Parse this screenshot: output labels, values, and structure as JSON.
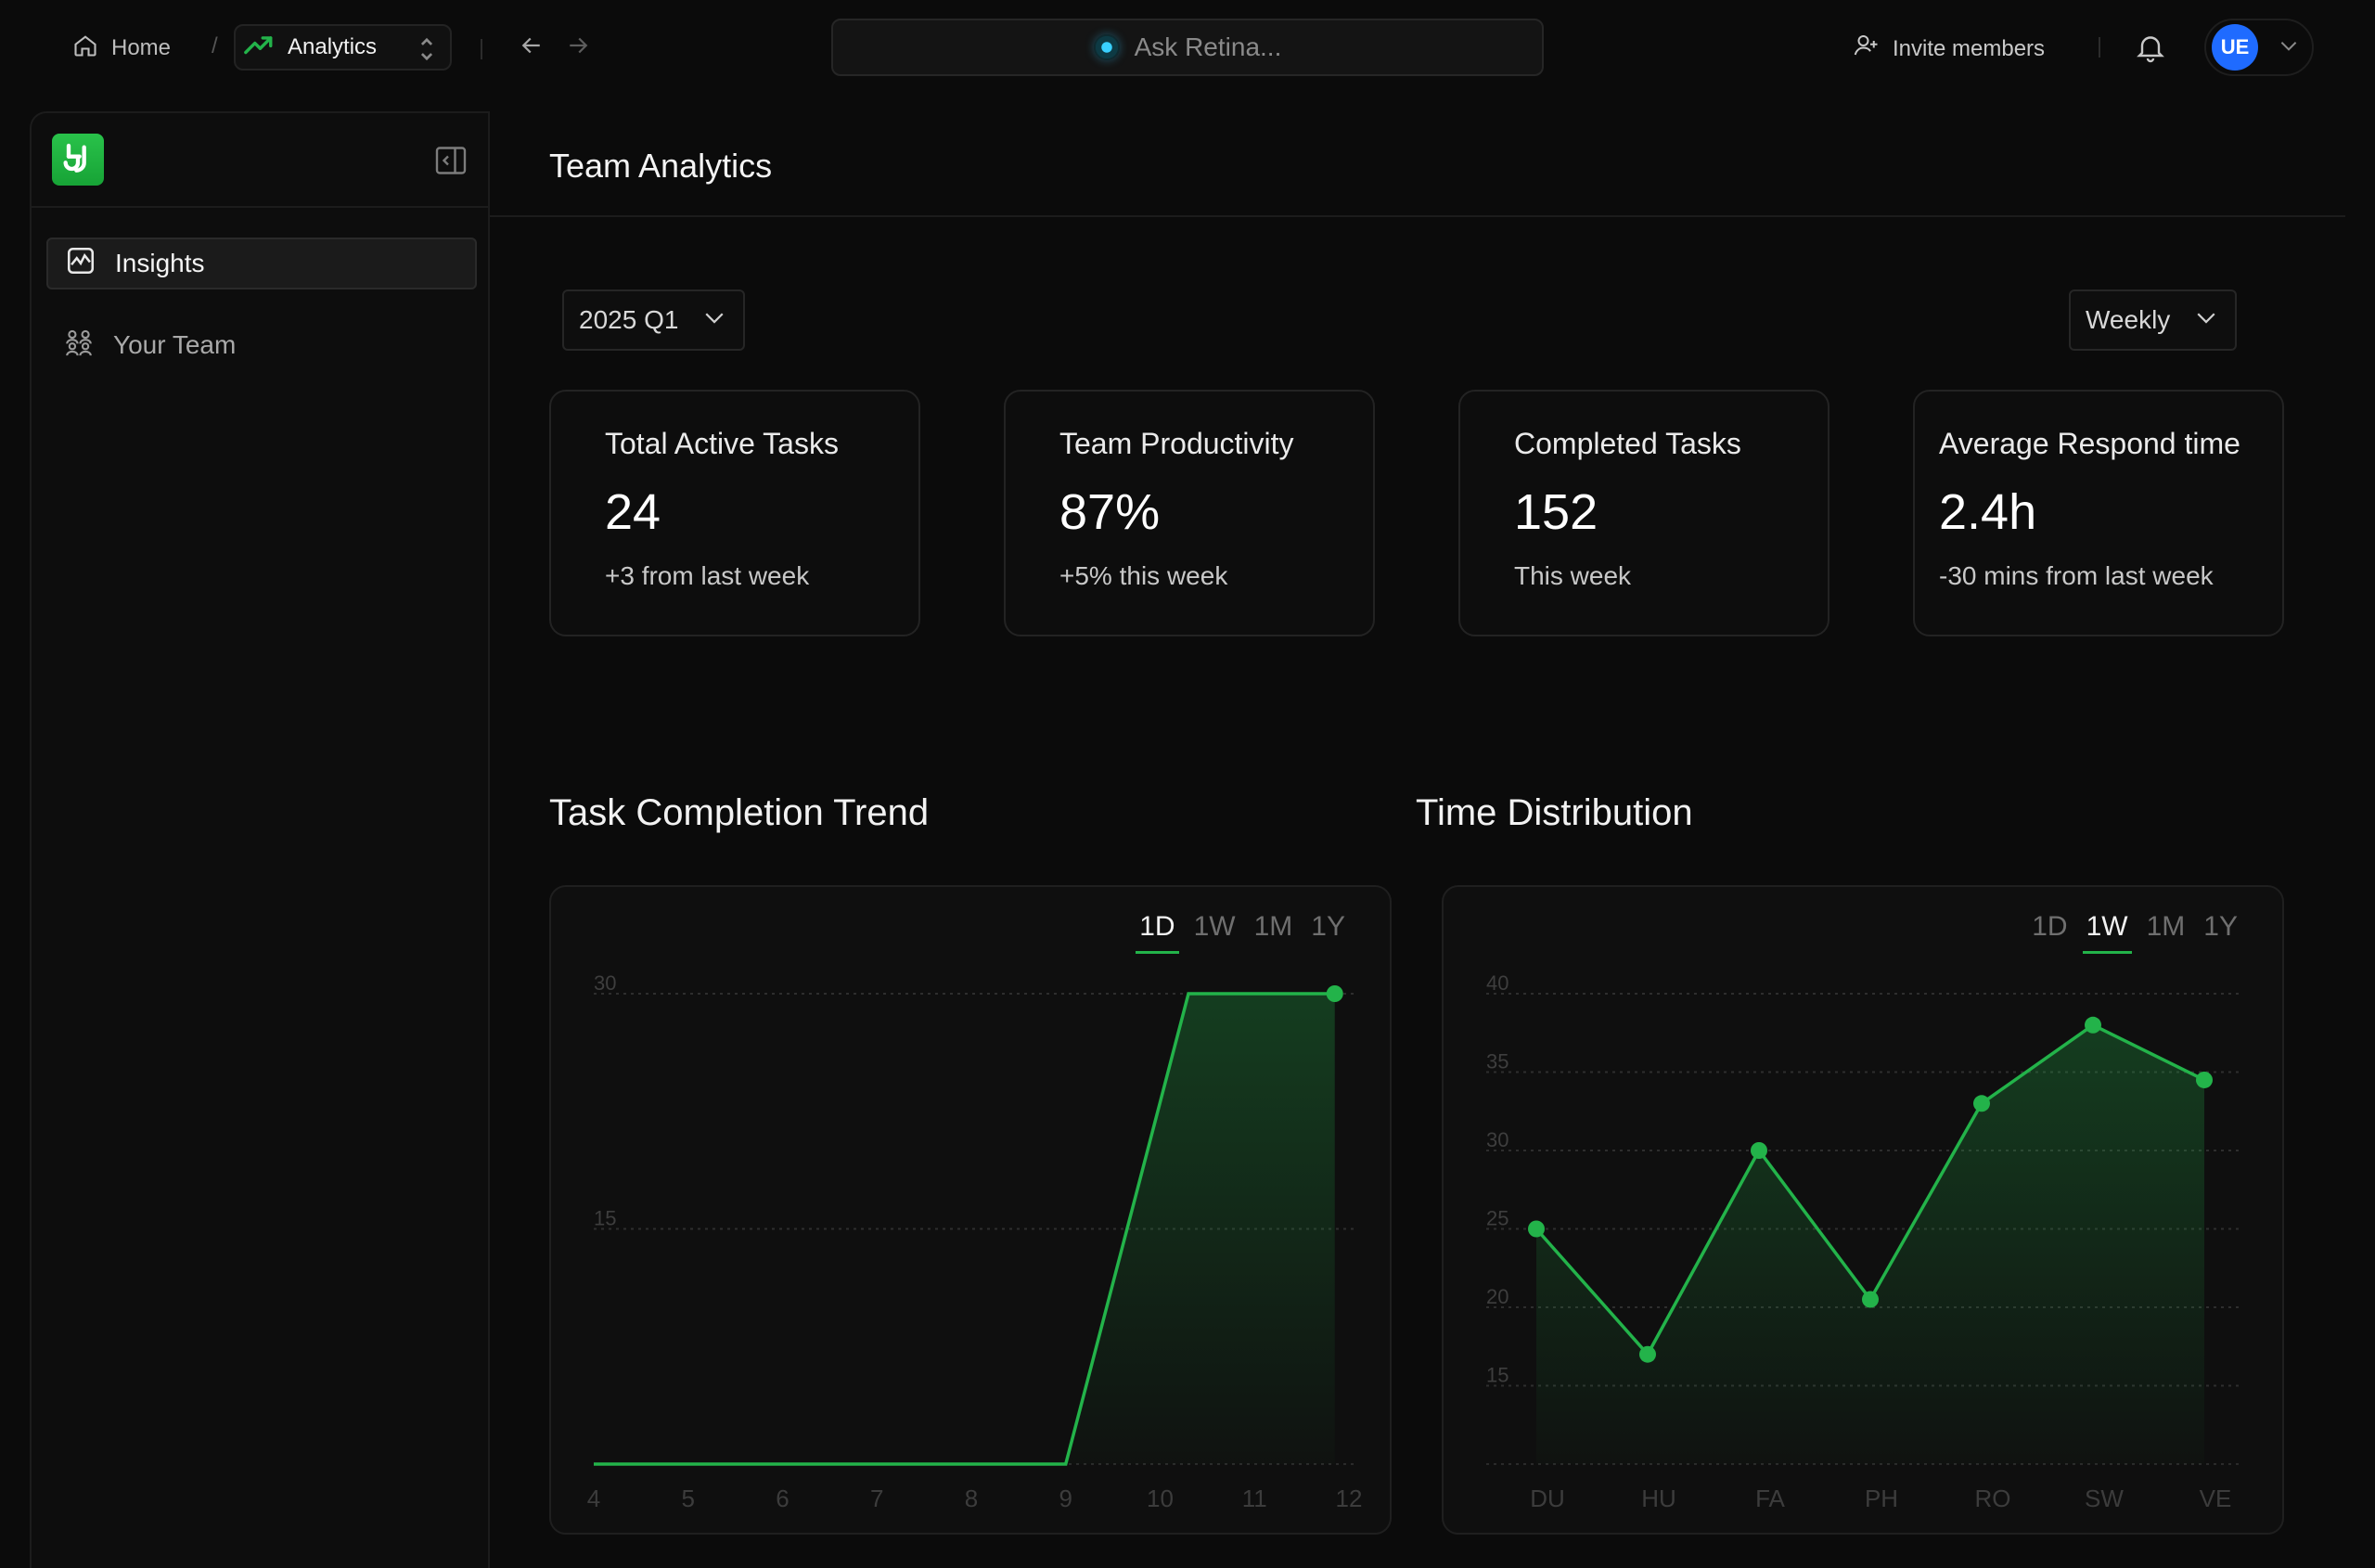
{
  "topbar": {
    "home_label": "Home",
    "separator": "/",
    "current_label": "Analytics",
    "search_placeholder": "Ask Retina...",
    "invite_label": "Invite members",
    "user_initials": "UE"
  },
  "sidebar": {
    "items": [
      {
        "label": "Insights",
        "active": true,
        "icon": "chart-icon"
      },
      {
        "label": "Your Team",
        "active": false,
        "icon": "team-icon"
      }
    ]
  },
  "main": {
    "title": "Team Analytics",
    "period_select": "2025 Q1",
    "interval_select": "Weekly",
    "stats": [
      {
        "title": "Total Active Tasks",
        "value": "24",
        "sub": "+3 from last week"
      },
      {
        "title": "Team Productivity",
        "value": "87%",
        "sub": "+5% this week"
      },
      {
        "title": "Completed Tasks",
        "value": "152",
        "sub": "This week"
      },
      {
        "title": "Average Respond time",
        "value": "2.4h",
        "sub": "-30 mins from last week"
      }
    ]
  },
  "colors": {
    "accent": "#23b34a",
    "background": "#0b0b0b",
    "avatar": "#1f6bff"
  },
  "chart_data": [
    {
      "type": "area",
      "title": "Task Completion Trend",
      "ranges": [
        "1D",
        "1W",
        "1M",
        "1Y"
      ],
      "active_range": "1D",
      "x": [
        "4",
        "5",
        "6",
        "7",
        "8",
        "9",
        "10",
        "11",
        "12"
      ],
      "y_ticks": [
        30,
        15
      ],
      "ylim": [
        0,
        30
      ],
      "points": [
        {
          "x": 4,
          "y": 0
        },
        {
          "x": 9,
          "y": 0
        },
        {
          "x": 10.3,
          "y": 30
        },
        {
          "x": 11.85,
          "y": 30
        }
      ],
      "marker_index": 3,
      "grid": true
    },
    {
      "type": "area",
      "title": "Time Distribution",
      "ranges": [
        "1D",
        "1W",
        "1M",
        "1Y"
      ],
      "active_range": "1W",
      "categories": [
        "DU",
        "HU",
        "FA",
        "PH",
        "RO",
        "SW",
        "VE"
      ],
      "y_ticks": [
        40,
        35,
        30,
        25,
        20,
        15
      ],
      "ylim": [
        10,
        40
      ],
      "values": [
        25,
        17,
        30,
        20.5,
        33,
        38,
        34.5
      ],
      "grid": true
    }
  ]
}
